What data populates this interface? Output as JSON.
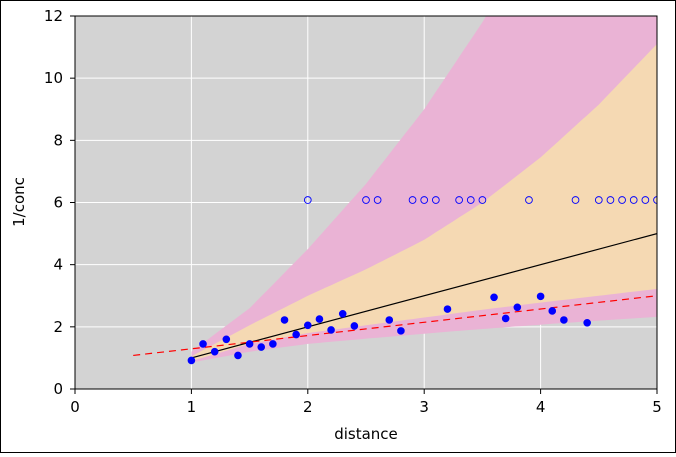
{
  "chart_data": {
    "type": "scatter",
    "xlabel": "distance",
    "ylabel": "1/conc",
    "xlim": [
      0,
      5
    ],
    "ylim": [
      0,
      12
    ],
    "x_ticks": [
      0,
      1,
      2,
      3,
      4,
      5
    ],
    "y_ticks": [
      0,
      2,
      4,
      6,
      8,
      10,
      12
    ],
    "grid": true,
    "background": "#d3d3d3",
    "band_colors": {
      "outer": "#eab3d5",
      "inner": "#f5d9b3"
    },
    "bands": {
      "outer": {
        "x": [
          1.0,
          1.5,
          2.0,
          2.5,
          3.0,
          3.5,
          4.0,
          4.5,
          5.0
        ],
        "lower": [
          0.85,
          1.2,
          1.45,
          1.62,
          1.78,
          1.93,
          2.07,
          2.2,
          2.32
        ],
        "upper": [
          1.2,
          2.6,
          4.5,
          6.6,
          9.0,
          11.8,
          14.9,
          18.2,
          21.8
        ]
      },
      "inner": {
        "x": [
          1.0,
          1.5,
          2.0,
          2.5,
          3.0,
          3.5,
          4.0,
          4.5,
          5.0
        ],
        "lower": [
          0.9,
          1.45,
          1.8,
          2.05,
          2.3,
          2.55,
          2.78,
          3.0,
          3.22
        ],
        "upper": [
          1.05,
          2.05,
          3.0,
          3.85,
          4.8,
          6.0,
          7.45,
          9.15,
          11.1
        ]
      }
    },
    "fit_line": {
      "x": [
        1.0,
        5.0
      ],
      "y": [
        1.0,
        5.0
      ],
      "color": "#000000"
    },
    "dashed_line": {
      "x": [
        0.5,
        5.0
      ],
      "y": [
        1.08,
        3.0
      ],
      "color": "#ff0000"
    },
    "series": [
      {
        "marker": "filled-circle",
        "color": "#0000ff",
        "x": [
          1.0,
          1.1,
          1.2,
          1.3,
          1.4,
          1.5,
          1.6,
          1.7,
          1.8,
          1.9,
          2.0,
          2.1,
          2.2,
          2.3,
          2.4,
          2.7,
          2.8,
          3.2,
          3.6,
          3.7,
          3.8,
          4.0,
          4.1,
          4.2,
          4.4
        ],
        "y": [
          0.92,
          1.45,
          1.2,
          1.6,
          1.08,
          1.45,
          1.35,
          1.45,
          2.22,
          1.75,
          2.05,
          2.25,
          1.9,
          2.42,
          2.03,
          2.22,
          1.87,
          2.57,
          2.95,
          2.27,
          2.63,
          2.98,
          2.51,
          2.22,
          2.13
        ]
      },
      {
        "marker": "open-circle",
        "color": "#0000ff",
        "x": [
          2.0,
          2.5,
          2.6,
          2.9,
          3.0,
          3.1,
          3.3,
          3.4,
          3.5,
          3.9,
          4.3,
          4.5,
          4.6,
          4.7,
          4.8,
          4.9,
          5.0
        ],
        "y": [
          6.08,
          6.08,
          6.08,
          6.08,
          6.08,
          6.08,
          6.08,
          6.08,
          6.08,
          6.08,
          6.08,
          6.08,
          6.08,
          6.08,
          6.08,
          6.08,
          6.08
        ]
      }
    ]
  }
}
